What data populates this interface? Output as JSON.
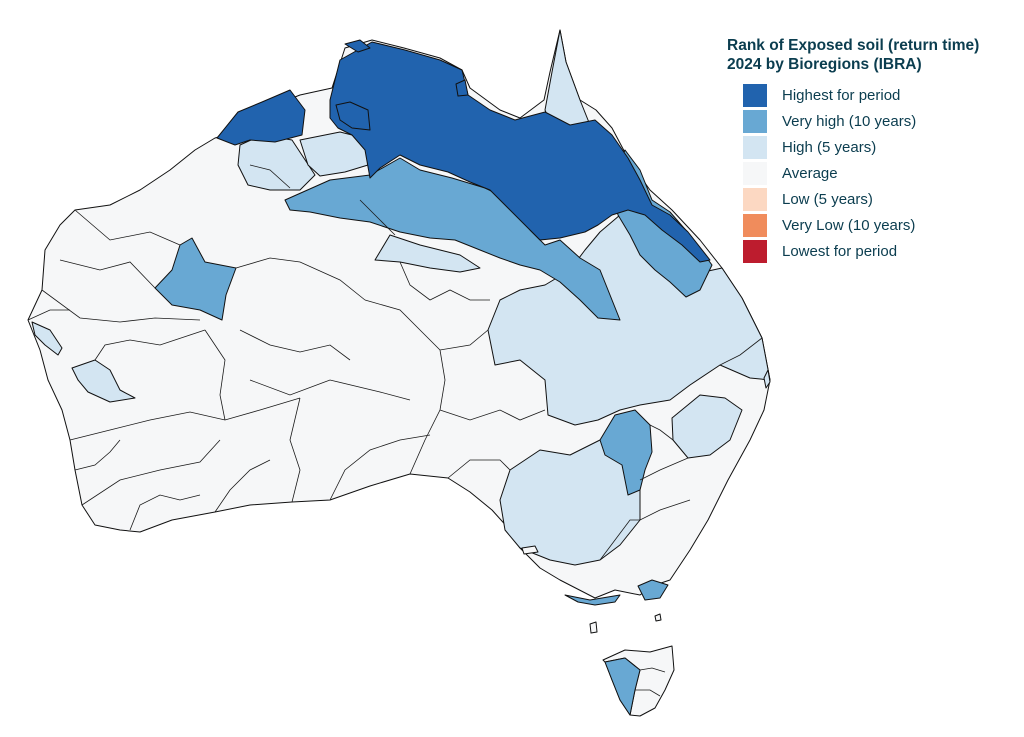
{
  "legend": {
    "title_line1": "Rank of Exposed soil (return time)",
    "title_line2": "2024 by Bioregions (IBRA)",
    "items": [
      {
        "label": "Highest for period",
        "color": "#2163ae"
      },
      {
        "label": "Very high (10 years)",
        "color": "#68a8d3"
      },
      {
        "label": "High (5 years)",
        "color": "#d3e5f2"
      },
      {
        "label": "Average",
        "color": "#f6f7f8"
      },
      {
        "label": "Low (5 years)",
        "color": "#fcd8c2"
      },
      {
        "label": "Very Low (10 years)",
        "color": "#f08c5c"
      },
      {
        "label": "Lowest for period",
        "color": "#bd1c2e"
      }
    ]
  },
  "map": {
    "country": "Australia",
    "classification": "IBRA bioregions",
    "fill_average": "#f6f7f8",
    "stroke": "#111111"
  }
}
